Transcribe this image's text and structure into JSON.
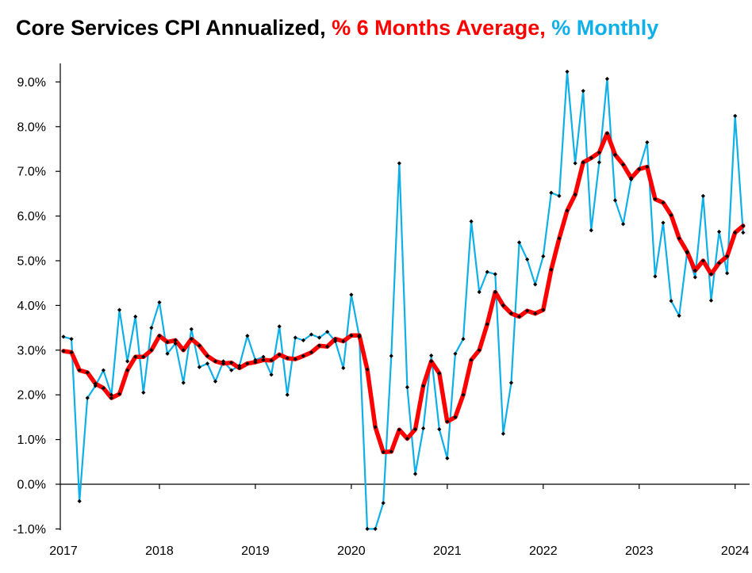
{
  "title": {
    "main": "Core Services CPI Annualized,",
    "red": "% 6 Months Average,",
    "blue": "% Monthly"
  },
  "colors": {
    "six_month_avg": "#ff0000",
    "monthly": "#0fb0e8",
    "markers": "#000000",
    "axis": "#000000",
    "background": "#ffffff"
  },
  "chart_data": {
    "type": "line",
    "title": "Core Services CPI Annualized, % 6 Months Average, % Monthly",
    "xlabel": "",
    "ylabel": "",
    "x_start": "2017-01",
    "x_frequency": "monthly",
    "ylim": [
      -1.0,
      9.0
    ],
    "yticks": [
      "-1.0%",
      "0.0%",
      "1.0%",
      "2.0%",
      "3.0%",
      "4.0%",
      "5.0%",
      "6.0%",
      "7.0%",
      "8.0%",
      "9.0%"
    ],
    "xticks": [
      "2017",
      "2018",
      "2019",
      "2020",
      "2021",
      "2022",
      "2023",
      "2024"
    ],
    "grid": false,
    "series": [
      {
        "name": "% Monthly",
        "color": "#0fb0e8",
        "values": [
          3.3,
          3.25,
          -0.38,
          1.93,
          2.2,
          2.55,
          2.0,
          3.9,
          2.75,
          3.75,
          2.05,
          3.5,
          4.07,
          2.92,
          3.15,
          2.27,
          3.47,
          2.62,
          2.7,
          2.3,
          2.75,
          2.55,
          2.65,
          3.32,
          2.78,
          2.85,
          2.45,
          3.53,
          2.0,
          3.28,
          3.22,
          3.35,
          3.28,
          3.41,
          3.2,
          2.6,
          4.24,
          3.3,
          -1.0,
          -1.0,
          -0.42,
          2.87,
          7.18,
          2.17,
          0.23,
          1.25,
          2.88,
          1.23,
          0.58,
          2.92,
          3.25,
          5.88,
          4.3,
          4.75,
          4.7,
          1.13,
          2.27,
          5.41,
          5.03,
          4.47,
          5.1,
          6.52,
          6.45,
          9.23,
          7.18,
          8.8,
          5.68,
          7.2,
          9.07,
          6.35,
          5.82,
          6.82,
          7.05,
          7.65,
          4.65,
          5.85,
          4.1,
          3.77,
          5.18,
          4.63,
          6.45,
          4.11,
          5.65,
          4.72,
          8.24,
          5.63
        ]
      },
      {
        "name": "% 6 Months Average",
        "color": "#ff0000",
        "values": [
          2.98,
          2.95,
          2.55,
          2.5,
          2.25,
          2.15,
          1.93,
          2.02,
          2.55,
          2.85,
          2.85,
          3.0,
          3.32,
          3.18,
          3.22,
          3.0,
          3.25,
          3.1,
          2.87,
          2.75,
          2.7,
          2.72,
          2.6,
          2.7,
          2.73,
          2.78,
          2.77,
          2.9,
          2.82,
          2.8,
          2.87,
          2.95,
          3.1,
          3.08,
          3.25,
          3.2,
          3.33,
          3.33,
          2.57,
          1.28,
          0.72,
          0.73,
          1.22,
          1.02,
          1.23,
          2.2,
          2.75,
          2.48,
          1.4,
          1.5,
          2.0,
          2.78,
          3.0,
          3.58,
          4.3,
          4.0,
          3.82,
          3.75,
          3.88,
          3.82,
          3.9,
          4.8,
          5.5,
          6.12,
          6.48,
          7.2,
          7.3,
          7.42,
          7.85,
          7.37,
          7.15,
          6.85,
          7.05,
          7.1,
          6.38,
          6.3,
          6.02,
          5.5,
          5.2,
          4.78,
          5.0,
          4.7,
          4.95,
          5.1,
          5.63,
          5.78
        ]
      }
    ]
  }
}
